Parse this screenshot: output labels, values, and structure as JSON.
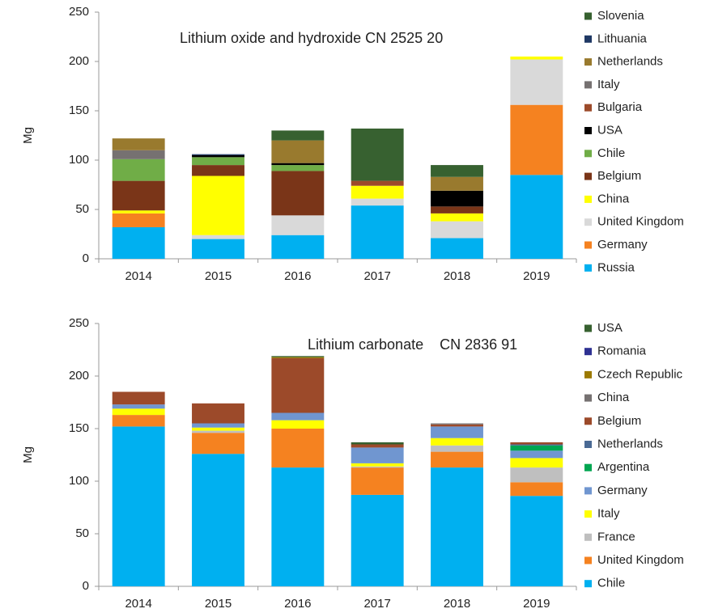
{
  "chart_data": [
    {
      "type": "bar",
      "stacked": true,
      "title": "Lithium oxide and hydroxide CN 2525 20",
      "ylabel": "Mg",
      "categories": [
        "2014",
        "2015",
        "2016",
        "2017",
        "2018",
        "2019"
      ],
      "ylim": [
        0,
        250
      ],
      "yticks": [
        0,
        50,
        100,
        150,
        200,
        250
      ],
      "grid": false,
      "legend": "right",
      "series": [
        {
          "name": "Russia",
          "color": "#00b0f0",
          "values": [
            32,
            20,
            24,
            54,
            21,
            85
          ]
        },
        {
          "name": "Germany",
          "color": "#f58220",
          "values": [
            14,
            0,
            0,
            0,
            0,
            71
          ]
        },
        {
          "name": "United Kingdom",
          "color": "#d9d9d9",
          "values": [
            0,
            4,
            20,
            7,
            17,
            46
          ]
        },
        {
          "name": "China",
          "color": "#ffff00",
          "values": [
            3,
            60,
            0,
            13,
            8,
            3
          ]
        },
        {
          "name": "Belgium",
          "color": "#7a3518",
          "values": [
            30,
            11,
            45,
            0,
            7,
            0
          ]
        },
        {
          "name": "Chile",
          "color": "#70ad47",
          "values": [
            22,
            8,
            6,
            0,
            0,
            0
          ]
        },
        {
          "name": "USA",
          "color": "#000000",
          "values": [
            0,
            2,
            2,
            0,
            16,
            0
          ]
        },
        {
          "name": "Bulgaria",
          "color": "#9c4a2a",
          "values": [
            0,
            0,
            0,
            5,
            0,
            0
          ]
        },
        {
          "name": "Italy",
          "color": "#767171",
          "values": [
            9,
            0,
            0,
            0,
            0,
            0
          ]
        },
        {
          "name": "Netherlands",
          "color": "#997a2e",
          "values": [
            12,
            0,
            23,
            0,
            14,
            0
          ]
        },
        {
          "name": "Lithuania",
          "color": "#1f3864",
          "values": [
            0,
            1,
            0,
            0,
            0,
            0
          ]
        },
        {
          "name": "Slovenia",
          "color": "#376130",
          "values": [
            0,
            0,
            10,
            53,
            12,
            0
          ]
        }
      ]
    },
    {
      "type": "bar",
      "stacked": true,
      "title": "Lithium carbonate    CN 2836 91",
      "ylabel": "Mg",
      "categories": [
        "2014",
        "2015",
        "2016",
        "2017",
        "2018",
        "2019"
      ],
      "ylim": [
        0,
        250
      ],
      "yticks": [
        0,
        50,
        100,
        150,
        200,
        250
      ],
      "grid": false,
      "legend": "right",
      "series": [
        {
          "name": "Chile",
          "color": "#00b0f0",
          "values": [
            152,
            126,
            113,
            87,
            113,
            86
          ]
        },
        {
          "name": "United Kingdom",
          "color": "#f58220",
          "values": [
            11,
            20,
            37,
            26,
            15,
            13
          ]
        },
        {
          "name": "France",
          "color": "#bfbfbf",
          "values": [
            0,
            2,
            0,
            1,
            6,
            14
          ]
        },
        {
          "name": "Italy",
          "color": "#ffff00",
          "values": [
            6,
            3,
            8,
            3,
            7,
            9
          ]
        },
        {
          "name": "Germany",
          "color": "#7096d0",
          "values": [
            4,
            4,
            7,
            15,
            11,
            7
          ]
        },
        {
          "name": "Argentina",
          "color": "#00a651",
          "values": [
            0,
            0,
            0,
            0,
            0,
            5
          ]
        },
        {
          "name": "Netherlands",
          "color": "#4a6a94",
          "values": [
            0,
            0,
            0,
            0,
            0,
            1
          ]
        },
        {
          "name": "Belgium",
          "color": "#9c4a2a",
          "values": [
            12,
            19,
            52,
            3,
            2,
            2
          ]
        },
        {
          "name": "China",
          "color": "#767171",
          "values": [
            0,
            0,
            0,
            0,
            1,
            0
          ]
        },
        {
          "name": "Czech Republic",
          "color": "#9c7a00",
          "values": [
            0,
            0,
            1,
            0,
            0,
            0
          ]
        },
        {
          "name": "Romania",
          "color": "#2e3192",
          "values": [
            0,
            0,
            0,
            0,
            0,
            0
          ]
        },
        {
          "name": "USA",
          "color": "#376130",
          "values": [
            0,
            0,
            1,
            2,
            0,
            0
          ]
        }
      ]
    }
  ]
}
